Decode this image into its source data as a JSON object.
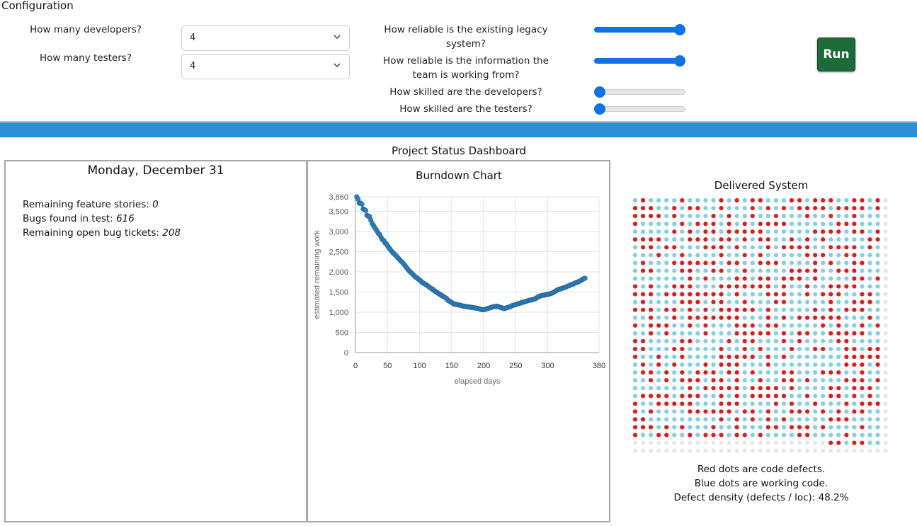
{
  "config": {
    "title": "Configuration",
    "developers": {
      "label": "How many developers?",
      "value": "4"
    },
    "testers": {
      "label": "How many testers?",
      "value": "4"
    },
    "sliders": [
      {
        "label": "How reliable is the existing legacy system?",
        "level": 1.0
      },
      {
        "label": "How reliable is the information the team is working from?",
        "level": 1.0
      },
      {
        "label": "How skilled are the developers?",
        "level": 0.0
      },
      {
        "label": "How skilled are the testers?",
        "level": 0.0
      }
    ],
    "run_label": "Run",
    "slider_color": "#1172e6",
    "run_color": "#1e6b3a",
    "bar_color": "#2b8fd6"
  },
  "dashboard": {
    "title": "Project Status Dashboard",
    "date": "Monday, December 31",
    "stats": [
      {
        "label": "Remaining feature stories:",
        "value": "0"
      },
      {
        "label": "Bugs found in test:",
        "value": "616"
      },
      {
        "label": "Remaining open bug tickets:",
        "value": "208"
      }
    ]
  },
  "chart_data": {
    "type": "scatter",
    "title": "Burndown Chart",
    "xlabel": "elapsed days",
    "ylabel": "estimated remaining work",
    "xlim": [
      0,
      380
    ],
    "ylim": [
      0,
      3860
    ],
    "xticks": [
      0,
      50,
      100,
      150,
      200,
      250,
      300,
      380
    ],
    "yticks": [
      0,
      500,
      1000,
      1500,
      2000,
      2500,
      3000,
      3500,
      3860
    ],
    "ytick_labels": [
      "0",
      "500",
      "1,000",
      "1,500",
      "2,000",
      "2,500",
      "3,000",
      "3,500",
      "3,860"
    ],
    "xtick_labels": [
      "0",
      "50",
      "100",
      "150",
      "200",
      "250",
      "300",
      "380"
    ],
    "grid": true,
    "point_color": "#2f7fba",
    "points": [
      [
        2,
        3860
      ],
      [
        4,
        3800
      ],
      [
        6,
        3700
      ],
      [
        8,
        3700
      ],
      [
        10,
        3680
      ],
      [
        12,
        3560
      ],
      [
        14,
        3540
      ],
      [
        16,
        3520
      ],
      [
        18,
        3400
      ],
      [
        20,
        3380
      ],
      [
        22,
        3370
      ],
      [
        24,
        3280
      ],
      [
        26,
        3200
      ],
      [
        28,
        3150
      ],
      [
        30,
        3100
      ],
      [
        32,
        3050
      ],
      [
        34,
        3000
      ],
      [
        36,
        2950
      ],
      [
        38,
        2920
      ],
      [
        40,
        2850
      ],
      [
        42,
        2800
      ],
      [
        44,
        2780
      ],
      [
        46,
        2720
      ],
      [
        48,
        2700
      ],
      [
        50,
        2650
      ],
      [
        52,
        2600
      ],
      [
        54,
        2560
      ],
      [
        56,
        2520
      ],
      [
        58,
        2480
      ],
      [
        60,
        2450
      ],
      [
        62,
        2420
      ],
      [
        64,
        2390
      ],
      [
        66,
        2350
      ],
      [
        68,
        2320
      ],
      [
        70,
        2280
      ],
      [
        72,
        2250
      ],
      [
        74,
        2220
      ],
      [
        76,
        2180
      ],
      [
        78,
        2140
      ],
      [
        80,
        2100
      ],
      [
        82,
        2060
      ],
      [
        84,
        2020
      ],
      [
        86,
        1990
      ],
      [
        88,
        1960
      ],
      [
        90,
        1930
      ],
      [
        92,
        1900
      ],
      [
        94,
        1870
      ],
      [
        96,
        1850
      ],
      [
        98,
        1820
      ],
      [
        100,
        1800
      ],
      [
        102,
        1770
      ],
      [
        104,
        1740
      ],
      [
        106,
        1720
      ],
      [
        108,
        1700
      ],
      [
        110,
        1680
      ],
      [
        112,
        1660
      ],
      [
        114,
        1640
      ],
      [
        116,
        1610
      ],
      [
        118,
        1590
      ],
      [
        120,
        1570
      ],
      [
        122,
        1550
      ],
      [
        124,
        1520
      ],
      [
        126,
        1500
      ],
      [
        128,
        1480
      ],
      [
        130,
        1460
      ],
      [
        132,
        1440
      ],
      [
        134,
        1420
      ],
      [
        136,
        1400
      ],
      [
        138,
        1380
      ],
      [
        140,
        1360
      ],
      [
        142,
        1340
      ],
      [
        144,
        1300
      ],
      [
        146,
        1280
      ],
      [
        148,
        1260
      ],
      [
        150,
        1240
      ],
      [
        152,
        1220
      ],
      [
        154,
        1200
      ],
      [
        156,
        1200
      ],
      [
        158,
        1190
      ],
      [
        160,
        1180
      ],
      [
        162,
        1180
      ],
      [
        164,
        1170
      ],
      [
        166,
        1160
      ],
      [
        168,
        1150
      ],
      [
        170,
        1150
      ],
      [
        172,
        1140
      ],
      [
        174,
        1140
      ],
      [
        176,
        1130
      ],
      [
        178,
        1130
      ],
      [
        180,
        1120
      ],
      [
        182,
        1120
      ],
      [
        184,
        1110
      ],
      [
        186,
        1110
      ],
      [
        188,
        1100
      ],
      [
        190,
        1100
      ],
      [
        192,
        1090
      ],
      [
        194,
        1080
      ],
      [
        196,
        1070
      ],
      [
        198,
        1060
      ],
      [
        200,
        1060
      ],
      [
        202,
        1070
      ],
      [
        204,
        1080
      ],
      [
        206,
        1090
      ],
      [
        208,
        1100
      ],
      [
        210,
        1110
      ],
      [
        212,
        1120
      ],
      [
        214,
        1130
      ],
      [
        216,
        1140
      ],
      [
        218,
        1140
      ],
      [
        220,
        1150
      ],
      [
        222,
        1140
      ],
      [
        224,
        1130
      ],
      [
        226,
        1120
      ],
      [
        228,
        1110
      ],
      [
        230,
        1100
      ],
      [
        232,
        1090
      ],
      [
        234,
        1100
      ],
      [
        236,
        1110
      ],
      [
        238,
        1120
      ],
      [
        240,
        1130
      ],
      [
        242,
        1140
      ],
      [
        244,
        1160
      ],
      [
        246,
        1170
      ],
      [
        248,
        1180
      ],
      [
        250,
        1190
      ],
      [
        252,
        1200
      ],
      [
        254,
        1210
      ],
      [
        256,
        1220
      ],
      [
        258,
        1230
      ],
      [
        260,
        1240
      ],
      [
        262,
        1250
      ],
      [
        264,
        1260
      ],
      [
        266,
        1270
      ],
      [
        268,
        1280
      ],
      [
        270,
        1290
      ],
      [
        272,
        1300
      ],
      [
        274,
        1300
      ],
      [
        276,
        1310
      ],
      [
        278,
        1320
      ],
      [
        280,
        1330
      ],
      [
        282,
        1350
      ],
      [
        284,
        1370
      ],
      [
        286,
        1390
      ],
      [
        288,
        1400
      ],
      [
        290,
        1410
      ],
      [
        292,
        1420
      ],
      [
        294,
        1420
      ],
      [
        296,
        1430
      ],
      [
        298,
        1440
      ],
      [
        300,
        1440
      ],
      [
        302,
        1450
      ],
      [
        304,
        1460
      ],
      [
        306,
        1470
      ],
      [
        308,
        1480
      ],
      [
        310,
        1500
      ],
      [
        312,
        1520
      ],
      [
        314,
        1540
      ],
      [
        316,
        1560
      ],
      [
        318,
        1570
      ],
      [
        320,
        1580
      ],
      [
        322,
        1590
      ],
      [
        324,
        1600
      ],
      [
        326,
        1610
      ],
      [
        328,
        1620
      ],
      [
        330,
        1640
      ],
      [
        332,
        1650
      ],
      [
        334,
        1660
      ],
      [
        336,
        1680
      ],
      [
        338,
        1690
      ],
      [
        340,
        1700
      ],
      [
        342,
        1720
      ],
      [
        344,
        1730
      ],
      [
        346,
        1740
      ],
      [
        348,
        1760
      ],
      [
        350,
        1770
      ],
      [
        352,
        1790
      ],
      [
        354,
        1810
      ],
      [
        356,
        1830
      ],
      [
        358,
        1840
      ]
    ]
  },
  "delivered": {
    "title": "Delivered System",
    "columns": 33,
    "rows": 33,
    "defect_density": 0.482,
    "colors": {
      "defect": "#e01b1b",
      "working": "#7fd0e8",
      "empty": "#e8e8e8"
    },
    "captions": [
      "Red dots are code defects.",
      "Blue dots are working code.",
      "Defect density (defects / loc): 48.2%"
    ]
  }
}
